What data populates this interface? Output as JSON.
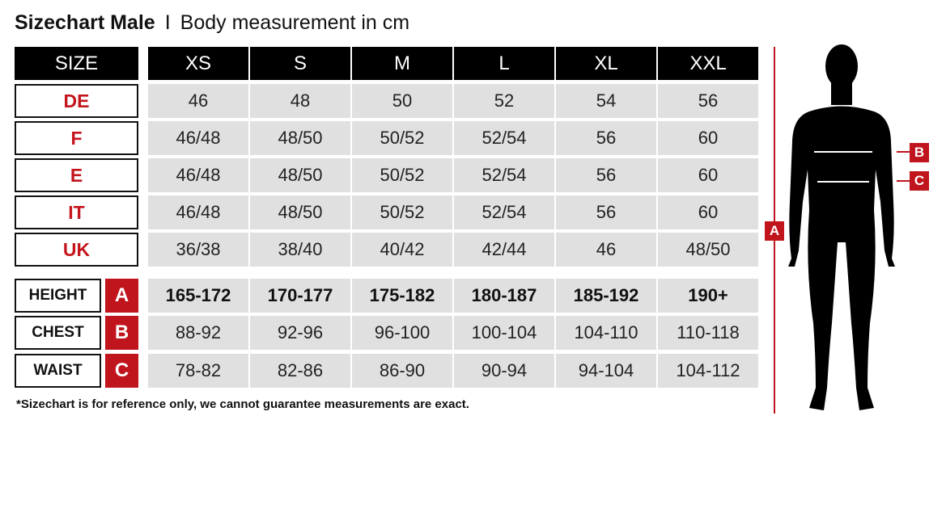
{
  "title": {
    "main": "Sizechart Male",
    "separator": "I",
    "subtitle": "Body measurement in cm"
  },
  "header": {
    "label": "SIZE",
    "sizes": [
      "XS",
      "S",
      "M",
      "L",
      "XL",
      "XXL"
    ]
  },
  "size_rows": [
    {
      "label": "DE",
      "values": [
        "46",
        "48",
        "50",
        "52",
        "54",
        "56"
      ]
    },
    {
      "label": "F",
      "values": [
        "46/48",
        "48/50",
        "50/52",
        "52/54",
        "56",
        "60"
      ]
    },
    {
      "label": "E",
      "values": [
        "46/48",
        "48/50",
        "50/52",
        "52/54",
        "56",
        "60"
      ]
    },
    {
      "label": "IT",
      "values": [
        "46/48",
        "48/50",
        "50/52",
        "52/54",
        "56",
        "60"
      ]
    },
    {
      "label": "UK",
      "values": [
        "36/38",
        "38/40",
        "40/42",
        "42/44",
        "46",
        "48/50"
      ]
    }
  ],
  "measurement_rows": [
    {
      "label": "HEIGHT",
      "key": "A",
      "values": [
        "165-172",
        "170-177",
        "175-182",
        "180-187",
        "185-192",
        "190+"
      ]
    },
    {
      "label": "CHEST",
      "key": "B",
      "values": [
        "88-92",
        "92-96",
        "96-100",
        "100-104",
        "104-110",
        "110-118"
      ]
    },
    {
      "label": "WAIST",
      "key": "C",
      "values": [
        "78-82",
        "82-86",
        "86-90",
        "90-94",
        "94-104",
        "104-112"
      ]
    }
  ],
  "footnote": "*Sizechart is for reference only, we cannot guarantee measurements are exact.",
  "figure": {
    "height_marker": "A",
    "chest_marker": "B",
    "waist_marker": "C"
  },
  "colors": {
    "accent_red": "#c0151c",
    "header_black": "#000000",
    "cell_gray": "#e0e0e0"
  }
}
